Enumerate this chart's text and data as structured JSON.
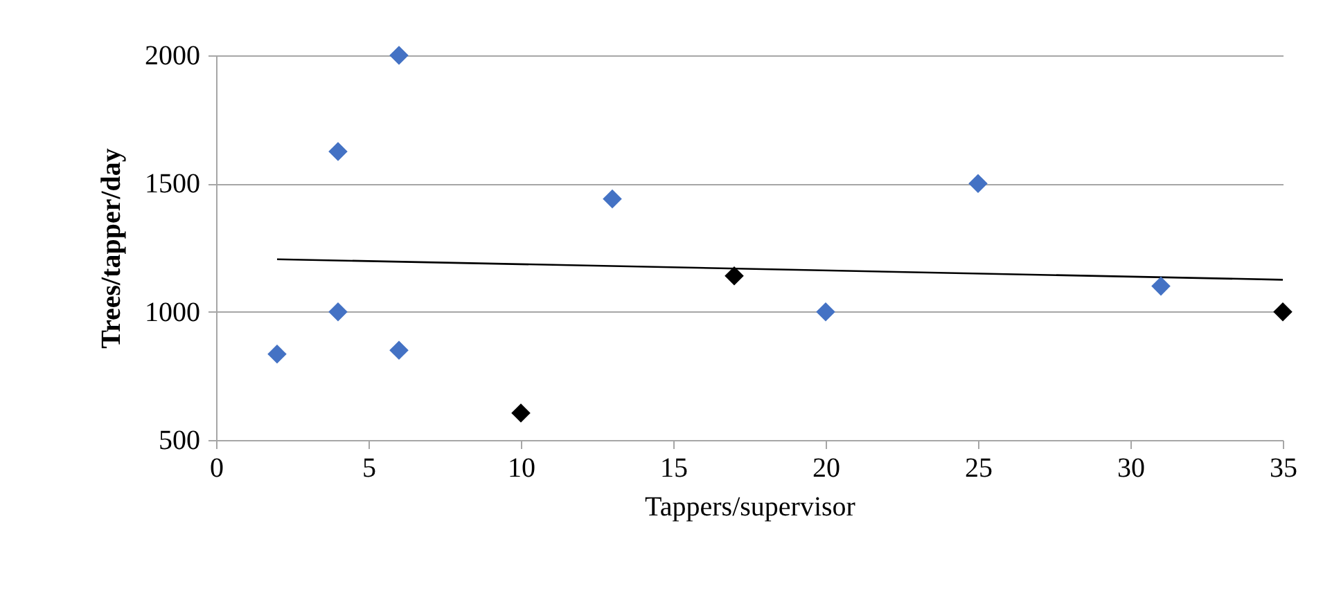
{
  "chart_data": {
    "type": "scatter",
    "xlabel": "Tappers/supervisor",
    "ylabel": "Trees/tapper/day",
    "xlim": [
      0,
      35
    ],
    "xticks": [
      0,
      5,
      10,
      15,
      20,
      25,
      30,
      35
    ],
    "ylim": [
      500,
      2000
    ],
    "yticks": [
      500,
      1000,
      1500,
      2000
    ],
    "grid": "y",
    "marker": "diamond",
    "series": [
      {
        "color": "#4472c4",
        "x": [
          2,
          4,
          4,
          6,
          6,
          13,
          20,
          25,
          31
        ],
        "values": [
          835,
          1625,
          1000,
          2000,
          850,
          1440,
          1000,
          1500,
          1100
        ]
      },
      {
        "color": "#000000",
        "x": [
          10,
          17,
          35
        ],
        "values": [
          605,
          1140,
          1000
        ]
      },
      {
        "type": "line",
        "marker": "none",
        "color": "#000000",
        "x": [
          2,
          35
        ],
        "values": [
          1205,
          1125
        ]
      }
    ]
  }
}
